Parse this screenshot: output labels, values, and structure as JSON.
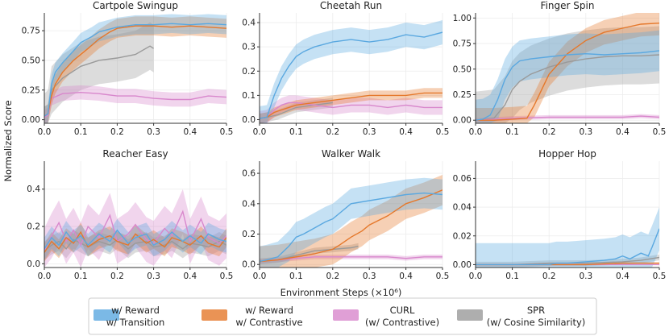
{
  "figure": {
    "ylabel": "Normalized Score",
    "xlabel": "Environment Steps (×10⁶)",
    "colors": {
      "reward_transition": "#5aa8e0",
      "reward_contrastive": "#e5782b",
      "curl": "#d887cc",
      "spr": "#9a9a9a"
    }
  },
  "legend": {
    "items": [
      {
        "key": "reward_transition",
        "line1": "w/ Reward",
        "line2": "w/ Transition"
      },
      {
        "key": "reward_contrastive",
        "line1": "w/ Reward",
        "line2": "w/ Contrastive"
      },
      {
        "key": "curl",
        "line1": "CURL",
        "line2": "(w/ Contrastive)"
      },
      {
        "key": "spr",
        "line1": "SPR",
        "line2": "(w/ Cosine Similarity)"
      }
    ]
  },
  "chart_data": [
    {
      "type": "line",
      "title": "Cartpole Swingup",
      "xlim": [
        0,
        0.5
      ],
      "ylim": [
        -0.03,
        0.9
      ],
      "xticks": [
        0.0,
        0.1,
        0.2,
        0.3,
        0.4,
        0.5
      ],
      "xtick_labels": [
        "0.0",
        "0.1",
        "0.2",
        "0.3",
        "0.4",
        "0.5"
      ],
      "yticks": [
        0.0,
        0.25,
        0.5,
        0.75
      ],
      "ytick_labels": [
        "0.00",
        "0.25",
        "0.50",
        "0.75"
      ],
      "series": [
        {
          "key": "reward_transition",
          "x": [
            0,
            0.01,
            0.02,
            0.03,
            0.05,
            0.08,
            0.1,
            0.13,
            0.15,
            0.2,
            0.25,
            0.3,
            0.35,
            0.4,
            0.45,
            0.5
          ],
          "y": [
            0.03,
            0.05,
            0.3,
            0.4,
            0.48,
            0.58,
            0.65,
            0.7,
            0.74,
            0.78,
            0.8,
            0.8,
            0.81,
            0.8,
            0.81,
            0.8
          ],
          "band": 0.08
        },
        {
          "key": "reward_contrastive",
          "x": [
            0,
            0.01,
            0.02,
            0.03,
            0.05,
            0.08,
            0.1,
            0.12,
            0.15,
            0.18,
            0.2,
            0.25,
            0.3,
            0.35,
            0.4,
            0.45,
            0.5
          ],
          "y": [
            0.03,
            0.05,
            0.2,
            0.3,
            0.4,
            0.5,
            0.55,
            0.6,
            0.68,
            0.74,
            0.77,
            0.79,
            0.79,
            0.78,
            0.79,
            0.78,
            0.77
          ],
          "band": 0.08
        },
        {
          "key": "curl",
          "x": [
            0,
            0.01,
            0.02,
            0.05,
            0.1,
            0.15,
            0.2,
            0.25,
            0.3,
            0.35,
            0.4,
            0.45,
            0.5
          ],
          "y": [
            0.02,
            0.04,
            0.18,
            0.22,
            0.23,
            0.22,
            0.2,
            0.2,
            0.18,
            0.17,
            0.17,
            0.2,
            0.19
          ],
          "band": 0.06
        },
        {
          "key": "spr",
          "x": [
            0,
            0.01,
            0.02,
            0.05,
            0.1,
            0.15,
            0.2,
            0.25,
            0.29,
            0.3
          ],
          "y": [
            0.02,
            0.05,
            0.25,
            0.35,
            0.45,
            0.5,
            0.52,
            0.55,
            0.62,
            0.6
          ],
          "band": 0.2
        }
      ]
    },
    {
      "type": "line",
      "title": "Cheetah Run",
      "xlim": [
        0,
        0.5
      ],
      "ylim": [
        -0.015,
        0.44
      ],
      "xticks": [
        0.0,
        0.1,
        0.2,
        0.3,
        0.4,
        0.5
      ],
      "xtick_labels": [
        "0.0",
        "0.1",
        "0.2",
        "0.3",
        "0.4",
        "0.5"
      ],
      "yticks": [
        0.0,
        0.1,
        0.2,
        0.3,
        0.4
      ],
      "ytick_labels": [
        "0.0",
        "0.1",
        "0.2",
        "0.3",
        "0.4"
      ],
      "series": [
        {
          "key": "reward_transition",
          "x": [
            0,
            0.02,
            0.04,
            0.06,
            0.08,
            0.1,
            0.12,
            0.15,
            0.2,
            0.25,
            0.3,
            0.35,
            0.4,
            0.45,
            0.5
          ],
          "y": [
            0.005,
            0.01,
            0.1,
            0.17,
            0.22,
            0.26,
            0.28,
            0.3,
            0.32,
            0.33,
            0.32,
            0.33,
            0.35,
            0.34,
            0.36
          ],
          "band": 0.05
        },
        {
          "key": "reward_contrastive",
          "x": [
            0,
            0.02,
            0.04,
            0.06,
            0.08,
            0.1,
            0.15,
            0.2,
            0.25,
            0.3,
            0.35,
            0.4,
            0.45,
            0.5
          ],
          "y": [
            0.005,
            0.01,
            0.03,
            0.04,
            0.05,
            0.06,
            0.07,
            0.08,
            0.09,
            0.1,
            0.1,
            0.1,
            0.11,
            0.11
          ],
          "band": 0.02
        },
        {
          "key": "curl",
          "x": [
            0,
            0.02,
            0.04,
            0.06,
            0.08,
            0.1,
            0.15,
            0.2,
            0.25,
            0.3,
            0.35,
            0.4,
            0.45,
            0.5
          ],
          "y": [
            0.005,
            0.01,
            0.04,
            0.06,
            0.07,
            0.07,
            0.06,
            0.05,
            0.06,
            0.06,
            0.05,
            0.06,
            0.05,
            0.05
          ],
          "band": 0.03
        },
        {
          "key": "spr",
          "x": [
            0,
            0.02,
            0.05,
            0.1,
            0.15,
            0.2
          ],
          "y": [
            0.005,
            0.01,
            0.02,
            0.05,
            0.06,
            0.07
          ],
          "band": 0.02
        }
      ]
    },
    {
      "type": "line",
      "title": "Finger Spin",
      "xlim": [
        0,
        0.5
      ],
      "ylim": [
        -0.03,
        1.05
      ],
      "xticks": [
        0.0,
        0.1,
        0.2,
        0.3,
        0.4,
        0.5
      ],
      "xtick_labels": [
        "0.0",
        "0.1",
        "0.2",
        "0.3",
        "0.4",
        "0.5"
      ],
      "yticks": [
        0.0,
        0.25,
        0.5,
        0.75,
        1.0
      ],
      "ytick_labels": [
        "0.00",
        "0.25",
        "0.50",
        "0.75",
        "1.00"
      ],
      "series": [
        {
          "key": "reward_transition",
          "x": [
            0,
            0.02,
            0.04,
            0.06,
            0.08,
            0.1,
            0.12,
            0.15,
            0.2,
            0.25,
            0.3,
            0.35,
            0.4,
            0.45,
            0.5
          ],
          "y": [
            0.0,
            0.01,
            0.05,
            0.2,
            0.4,
            0.52,
            0.58,
            0.6,
            0.62,
            0.64,
            0.65,
            0.64,
            0.65,
            0.66,
            0.68
          ],
          "band": 0.2
        },
        {
          "key": "reward_contrastive",
          "x": [
            0,
            0.05,
            0.1,
            0.14,
            0.16,
            0.18,
            0.2,
            0.25,
            0.3,
            0.35,
            0.4,
            0.45,
            0.5
          ],
          "y": [
            0.0,
            0.0,
            0.01,
            0.02,
            0.15,
            0.3,
            0.45,
            0.65,
            0.78,
            0.86,
            0.9,
            0.94,
            0.95
          ],
          "band": 0.12
        },
        {
          "key": "curl",
          "x": [
            0,
            0.05,
            0.1,
            0.2,
            0.3,
            0.4,
            0.45,
            0.5
          ],
          "y": [
            0.0,
            0.01,
            0.02,
            0.03,
            0.03,
            0.03,
            0.04,
            0.03
          ],
          "band": 0.02
        },
        {
          "key": "spr",
          "x": [
            0,
            0.05,
            0.08,
            0.1,
            0.12,
            0.15,
            0.2,
            0.25,
            0.3,
            0.35,
            0.4,
            0.45,
            0.5
          ],
          "y": [
            0.0,
            0.02,
            0.15,
            0.3,
            0.38,
            0.45,
            0.52,
            0.57,
            0.6,
            0.62,
            0.63,
            0.63,
            0.64
          ],
          "band": 0.28
        }
      ]
    },
    {
      "type": "line",
      "title": "Reacher Easy",
      "xlim": [
        0,
        0.5
      ],
      "ylim": [
        -0.02,
        0.55
      ],
      "xticks": [
        0.0,
        0.1,
        0.2,
        0.3,
        0.4,
        0.5
      ],
      "xtick_labels": [
        "0.0",
        "0.1",
        "0.2",
        "0.3",
        "0.4",
        "0.5"
      ],
      "yticks": [
        0.0,
        0.2,
        0.4
      ],
      "ytick_labels": [
        "0.0",
        "0.2",
        "0.4"
      ],
      "series": [
        {
          "key": "reward_transition",
          "x": [
            0,
            0.02,
            0.04,
            0.06,
            0.08,
            0.1,
            0.12,
            0.15,
            0.18,
            0.2,
            0.23,
            0.25,
            0.28,
            0.3,
            0.33,
            0.35,
            0.38,
            0.4,
            0.43,
            0.45,
            0.48,
            0.5
          ],
          "y": [
            0.08,
            0.14,
            0.1,
            0.17,
            0.12,
            0.15,
            0.1,
            0.16,
            0.12,
            0.18,
            0.11,
            0.14,
            0.16,
            0.1,
            0.13,
            0.17,
            0.12,
            0.15,
            0.11,
            0.16,
            0.13,
            0.12
          ],
          "band": 0.06
        },
        {
          "key": "reward_contrastive",
          "x": [
            0,
            0.02,
            0.04,
            0.06,
            0.08,
            0.1,
            0.12,
            0.15,
            0.18,
            0.2,
            0.23,
            0.25,
            0.28,
            0.3,
            0.33,
            0.35,
            0.38,
            0.4,
            0.43,
            0.45,
            0.48,
            0.5
          ],
          "y": [
            0.06,
            0.12,
            0.08,
            0.14,
            0.11,
            0.17,
            0.09,
            0.13,
            0.15,
            0.12,
            0.1,
            0.16,
            0.11,
            0.13,
            0.09,
            0.14,
            0.12,
            0.1,
            0.15,
            0.11,
            0.09,
            0.14
          ],
          "band": 0.05
        },
        {
          "key": "curl",
          "x": [
            0,
            0.02,
            0.04,
            0.06,
            0.08,
            0.1,
            0.12,
            0.15,
            0.18,
            0.2,
            0.23,
            0.25,
            0.28,
            0.3,
            0.33,
            0.35,
            0.38,
            0.4,
            0.43,
            0.45,
            0.48,
            0.5
          ],
          "y": [
            0.07,
            0.15,
            0.22,
            0.12,
            0.18,
            0.1,
            0.2,
            0.14,
            0.26,
            0.12,
            0.16,
            0.21,
            0.13,
            0.11,
            0.19,
            0.15,
            0.28,
            0.12,
            0.24,
            0.14,
            0.11,
            0.15
          ],
          "band": 0.12
        },
        {
          "key": "spr",
          "x": [
            0,
            0.02,
            0.04,
            0.06,
            0.08,
            0.1,
            0.12,
            0.15,
            0.18,
            0.2,
            0.23,
            0.25,
            0.28,
            0.3,
            0.33,
            0.35,
            0.38,
            0.4,
            0.43,
            0.45,
            0.48,
            0.5
          ],
          "y": [
            0.07,
            0.1,
            0.12,
            0.08,
            0.13,
            0.11,
            0.09,
            0.12,
            0.1,
            0.13,
            0.08,
            0.11,
            0.12,
            0.09,
            0.1,
            0.12,
            0.08,
            0.11,
            0.1,
            0.09,
            0.12,
            0.1
          ],
          "band": 0.05
        }
      ]
    },
    {
      "type": "line",
      "title": "Walker Walk",
      "xlim": [
        0,
        0.5
      ],
      "ylim": [
        -0.02,
        0.68
      ],
      "xticks": [
        0.0,
        0.1,
        0.2,
        0.3,
        0.4,
        0.5
      ],
      "xtick_labels": [
        "0.0",
        "0.1",
        "0.2",
        "0.3",
        "0.4",
        "0.5"
      ],
      "yticks": [
        0.0,
        0.2,
        0.4,
        0.6
      ],
      "ytick_labels": [
        "0.0",
        "0.2",
        "0.4",
        "0.6"
      ],
      "series": [
        {
          "key": "reward_transition",
          "x": [
            0,
            0.02,
            0.05,
            0.08,
            0.1,
            0.12,
            0.15,
            0.18,
            0.2,
            0.22,
            0.25,
            0.3,
            0.35,
            0.4,
            0.45,
            0.5
          ],
          "y": [
            0.02,
            0.03,
            0.05,
            0.12,
            0.18,
            0.2,
            0.24,
            0.28,
            0.3,
            0.34,
            0.4,
            0.42,
            0.44,
            0.46,
            0.47,
            0.46
          ],
          "band": 0.1
        },
        {
          "key": "reward_contrastive",
          "x": [
            0,
            0.05,
            0.1,
            0.15,
            0.2,
            0.22,
            0.25,
            0.28,
            0.3,
            0.35,
            0.4,
            0.45,
            0.5
          ],
          "y": [
            0.02,
            0.03,
            0.05,
            0.07,
            0.1,
            0.13,
            0.18,
            0.22,
            0.26,
            0.32,
            0.4,
            0.44,
            0.49
          ],
          "band": 0.1
        },
        {
          "key": "curl",
          "x": [
            0,
            0.05,
            0.1,
            0.15,
            0.2,
            0.25,
            0.3,
            0.35,
            0.4,
            0.45,
            0.5
          ],
          "y": [
            0.02,
            0.03,
            0.04,
            0.05,
            0.05,
            0.05,
            0.05,
            0.05,
            0.04,
            0.05,
            0.05
          ],
          "band": 0.015
        },
        {
          "key": "spr",
          "x": [
            0,
            0.05,
            0.1,
            0.15,
            0.2,
            0.25,
            0.27
          ],
          "y": [
            0.02,
            0.03,
            0.06,
            0.09,
            0.1,
            0.11,
            0.12
          ],
          "band": 0.02
        }
      ]
    },
    {
      "type": "line",
      "title": "Hopper Hop",
      "xlim": [
        0,
        0.5
      ],
      "ylim": [
        -0.002,
        0.072
      ],
      "xticks": [
        0.0,
        0.1,
        0.2,
        0.3,
        0.4,
        0.5
      ],
      "xtick_labels": [
        "0.0",
        "0.1",
        "0.2",
        "0.3",
        "0.4",
        "0.5"
      ],
      "yticks": [
        0.0,
        0.02,
        0.04,
        0.06
      ],
      "ytick_labels": [
        "0.00",
        "0.02",
        "0.04",
        "0.06"
      ],
      "series": [
        {
          "key": "reward_transition",
          "x": [
            0,
            0.1,
            0.2,
            0.22,
            0.25,
            0.3,
            0.35,
            0.38,
            0.4,
            0.42,
            0.45,
            0.47,
            0.48,
            0.5
          ],
          "y": [
            0.0,
            0.0,
            0.0,
            0.001,
            0.001,
            0.002,
            0.003,
            0.004,
            0.006,
            0.004,
            0.008,
            0.006,
            0.012,
            0.025
          ],
          "band": 0.015
        },
        {
          "key": "reward_contrastive",
          "x": [
            0,
            0.1,
            0.2,
            0.3,
            0.4,
            0.5
          ],
          "y": [
            0.0,
            0.0,
            0.0,
            0.0,
            0.001,
            0.001
          ],
          "band": 0.0005
        },
        {
          "key": "curl",
          "x": [
            0,
            0.1,
            0.2,
            0.3,
            0.4,
            0.5
          ],
          "y": [
            0.0,
            0.0,
            0.0,
            0.0,
            0.0,
            0.0
          ],
          "band": 0.0003
        },
        {
          "key": "spr",
          "x": [
            0,
            0.1,
            0.2,
            0.3,
            0.4,
            0.45,
            0.5
          ],
          "y": [
            0.0,
            0.0,
            0.001,
            0.001,
            0.002,
            0.003,
            0.005
          ],
          "band": 0.002
        }
      ]
    }
  ]
}
